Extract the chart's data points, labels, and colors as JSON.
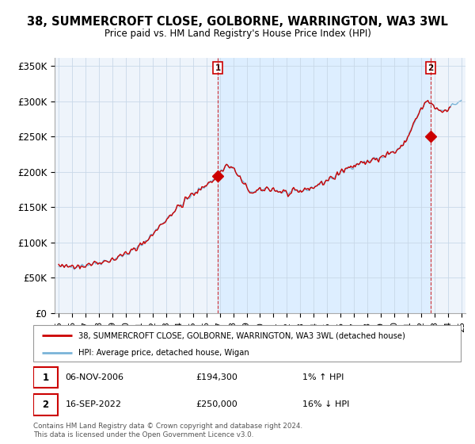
{
  "title": "38, SUMMERCROFT CLOSE, GOLBORNE, WARRINGTON, WA3 3WL",
  "subtitle": "Price paid vs. HM Land Registry's House Price Index (HPI)",
  "ylabel_ticks": [
    "£0",
    "£50K",
    "£100K",
    "£150K",
    "£200K",
    "£250K",
    "£300K",
    "£350K"
  ],
  "ytick_values": [
    0,
    50000,
    100000,
    150000,
    200000,
    250000,
    300000,
    350000
  ],
  "ylim": [
    0,
    362000
  ],
  "xlim_start": 1994.7,
  "xlim_end": 2025.3,
  "hpi_color": "#7ab4d8",
  "price_color": "#cc0000",
  "shade_color": "#ddeeff",
  "marker1_year": 2006.85,
  "marker1_price": 194300,
  "marker2_year": 2022.71,
  "marker2_price": 250000,
  "legend_line1": "38, SUMMERCROFT CLOSE, GOLBORNE, WARRINGTON, WA3 3WL (detached house)",
  "legend_line2": "HPI: Average price, detached house, Wigan",
  "sale1_date": "06-NOV-2006",
  "sale1_price": "£194,300",
  "sale1_hpi": "1% ↑ HPI",
  "sale2_date": "16-SEP-2022",
  "sale2_price": "£250,000",
  "sale2_hpi": "16% ↓ HPI",
  "footer": "Contains HM Land Registry data © Crown copyright and database right 2024.\nThis data is licensed under the Open Government Licence v3.0.",
  "background_color": "#ffffff",
  "plot_bg_color": "#eef4fb",
  "grid_color": "#c8d8e8"
}
